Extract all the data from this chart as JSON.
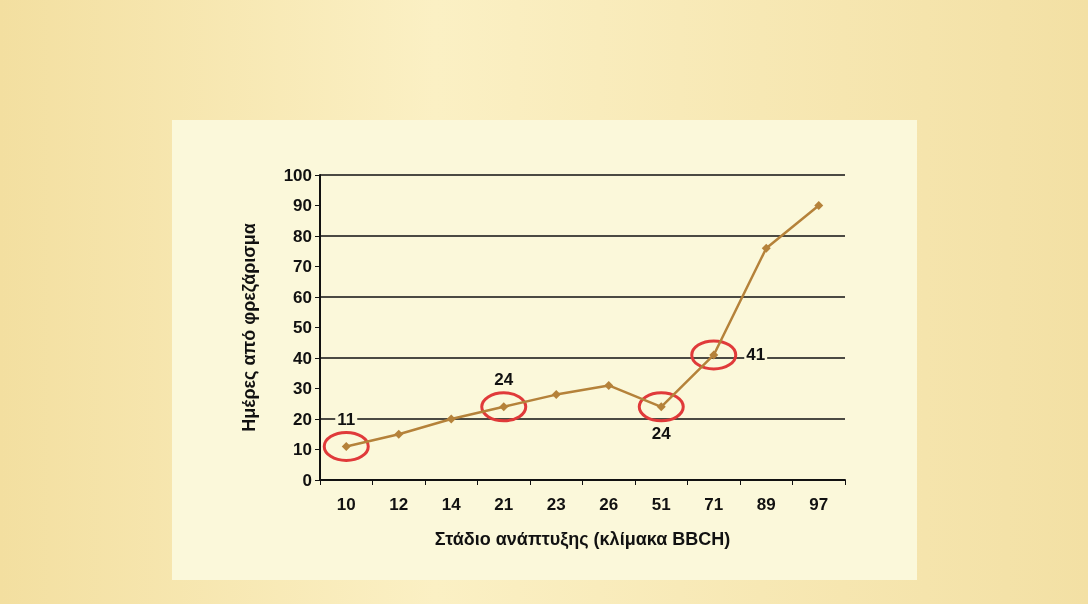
{
  "chart_data": {
    "type": "line",
    "xlabel": "Στάδιο ανάπτυξης (κλίμακα BBCH)",
    "ylabel": "Ημέρες από φρεζάρισμα",
    "categories": [
      "10",
      "12",
      "14",
      "21",
      "23",
      "26",
      "51",
      "71",
      "89",
      "97"
    ],
    "series": [
      {
        "color": "#b5823a",
        "values": [
          11,
          15,
          20,
          24,
          28,
          31,
          24,
          41,
          76,
          90
        ],
        "value_labels": [
          "11",
          null,
          null,
          "24",
          null,
          null,
          "24",
          "41",
          null,
          null
        ]
      }
    ],
    "ylim": [
      0,
      100
    ],
    "yticks": [
      0,
      10,
      20,
      30,
      40,
      50,
      60,
      70,
      80,
      90,
      100
    ],
    "grid": "y",
    "marker": "diamond",
    "line_style": "solid"
  }
}
